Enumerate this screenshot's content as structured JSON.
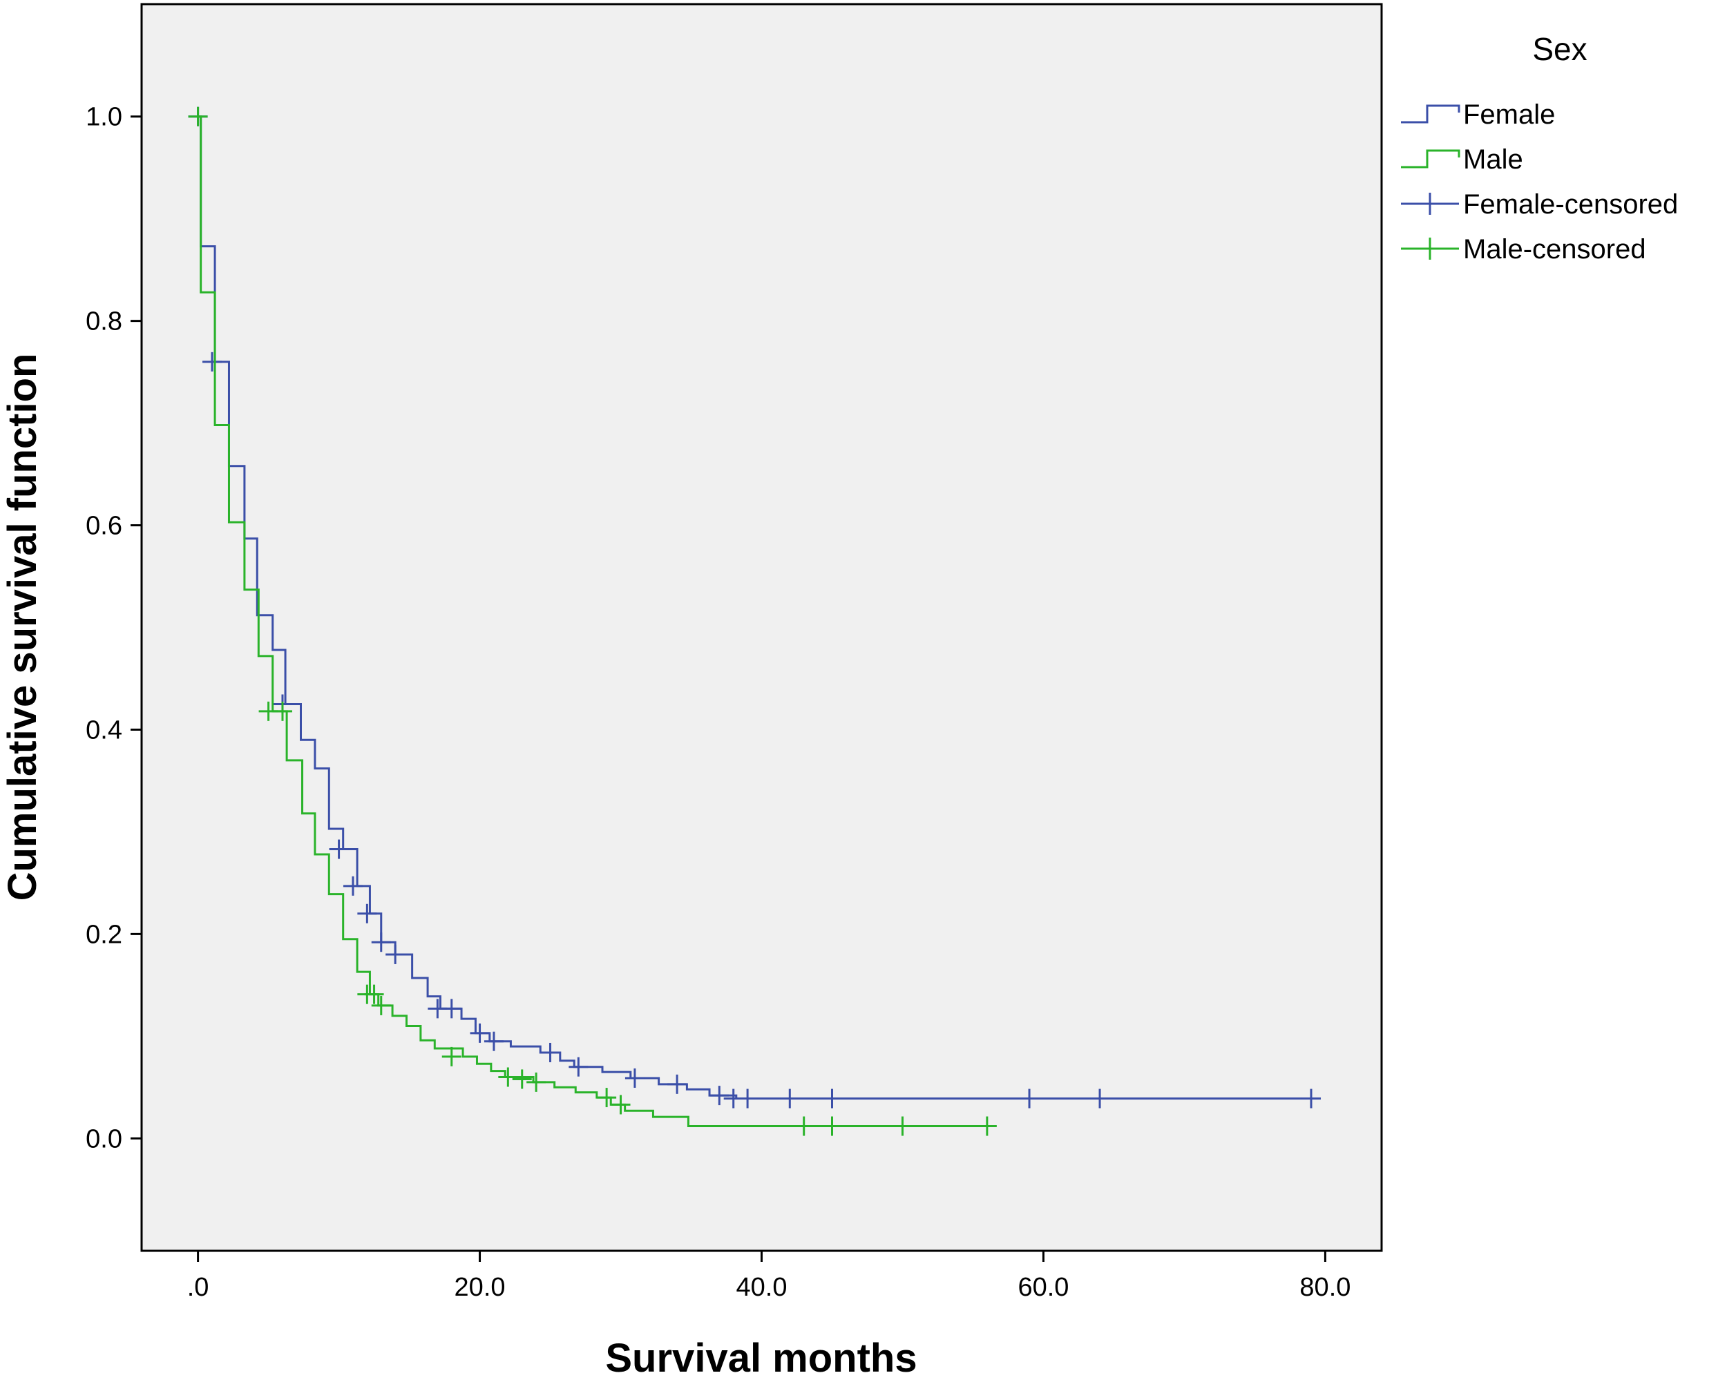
{
  "chart_data": {
    "type": "line",
    "subtype": "kaplan-meier",
    "title": "",
    "xlabel": "Survival months",
    "ylabel": "Cumulative survival function",
    "xlim": [
      -4,
      84
    ],
    "ylim": [
      -0.11,
      1.11
    ],
    "x_ticks": [
      0,
      20,
      40,
      60,
      80
    ],
    "x_tick_labels": [
      ".0",
      "20.0",
      "40.0",
      "60.0",
      "80.0"
    ],
    "y_ticks": [
      0,
      0.2,
      0.4,
      0.6,
      0.8,
      1.0
    ],
    "y_tick_labels": [
      "0.0",
      "0.2",
      "0.4",
      "0.6",
      "0.8",
      "1.0"
    ],
    "grid": false,
    "legend": {
      "title": "Sex",
      "position": "right",
      "entries": [
        {
          "label": "Female",
          "kind": "step",
          "series": "Female"
        },
        {
          "label": "Male",
          "kind": "step",
          "series": "Male"
        },
        {
          "label": "Female-censored",
          "kind": "censor",
          "series": "Female"
        },
        {
          "label": "Male-censored",
          "kind": "censor",
          "series": "Male"
        }
      ]
    },
    "series": [
      {
        "name": "Female",
        "color": "#3b4fa8",
        "steps": [
          [
            0,
            1.0
          ],
          [
            0.2,
            0.873
          ],
          [
            1.2,
            0.76
          ],
          [
            2.2,
            0.658
          ],
          [
            3.3,
            0.587
          ],
          [
            4.2,
            0.512
          ],
          [
            5.3,
            0.478
          ],
          [
            6.2,
            0.425
          ],
          [
            7.3,
            0.39
          ],
          [
            8.3,
            0.362
          ],
          [
            9.3,
            0.303
          ],
          [
            10.3,
            0.283
          ],
          [
            11.3,
            0.247
          ],
          [
            12.2,
            0.22
          ],
          [
            13.0,
            0.192
          ],
          [
            14.0,
            0.18
          ],
          [
            15.2,
            0.157
          ],
          [
            16.3,
            0.139
          ],
          [
            17.2,
            0.127
          ],
          [
            18.7,
            0.117
          ],
          [
            19.7,
            0.103
          ],
          [
            20.7,
            0.095
          ],
          [
            22.2,
            0.09
          ],
          [
            24.3,
            0.084
          ],
          [
            25.7,
            0.076
          ],
          [
            26.7,
            0.07
          ],
          [
            28.7,
            0.065
          ],
          [
            30.7,
            0.059
          ],
          [
            32.7,
            0.053
          ],
          [
            34.7,
            0.048
          ],
          [
            36.3,
            0.042
          ],
          [
            38.2,
            0.039
          ],
          [
            79.0,
            0.039
          ]
        ],
        "censored": [
          [
            0,
            1.0
          ],
          [
            1.0,
            0.76
          ],
          [
            6.0,
            0.425
          ],
          [
            10.0,
            0.283
          ],
          [
            11.0,
            0.247
          ],
          [
            12.0,
            0.22
          ],
          [
            13.0,
            0.192
          ],
          [
            14.0,
            0.18
          ],
          [
            17.0,
            0.127
          ],
          [
            18.0,
            0.127
          ],
          [
            20.0,
            0.103
          ],
          [
            21.0,
            0.095
          ],
          [
            25.0,
            0.084
          ],
          [
            27.0,
            0.07
          ],
          [
            31.0,
            0.059
          ],
          [
            34.0,
            0.053
          ],
          [
            37.0,
            0.042
          ],
          [
            38.0,
            0.039
          ],
          [
            39.0,
            0.039
          ],
          [
            42.0,
            0.039
          ],
          [
            45.0,
            0.039
          ],
          [
            59.0,
            0.039
          ],
          [
            64.0,
            0.039
          ],
          [
            79.0,
            0.039
          ]
        ]
      },
      {
        "name": "Male",
        "color": "#2ab32a",
        "steps": [
          [
            0,
            1.0
          ],
          [
            0.2,
            0.828
          ],
          [
            1.2,
            0.698
          ],
          [
            2.2,
            0.603
          ],
          [
            3.3,
            0.537
          ],
          [
            4.3,
            0.472
          ],
          [
            5.3,
            0.418
          ],
          [
            6.3,
            0.37
          ],
          [
            7.4,
            0.318
          ],
          [
            8.3,
            0.278
          ],
          [
            9.3,
            0.239
          ],
          [
            10.3,
            0.195
          ],
          [
            11.3,
            0.163
          ],
          [
            12.2,
            0.141
          ],
          [
            12.8,
            0.13
          ],
          [
            13.8,
            0.12
          ],
          [
            14.8,
            0.11
          ],
          [
            15.8,
            0.096
          ],
          [
            16.8,
            0.088
          ],
          [
            18.8,
            0.08
          ],
          [
            19.8,
            0.073
          ],
          [
            20.8,
            0.066
          ],
          [
            21.8,
            0.06
          ],
          [
            23.8,
            0.055
          ],
          [
            25.3,
            0.05
          ],
          [
            26.8,
            0.045
          ],
          [
            28.3,
            0.04
          ],
          [
            29.3,
            0.033
          ],
          [
            30.3,
            0.027
          ],
          [
            32.3,
            0.021
          ],
          [
            34.8,
            0.012
          ],
          [
            56.0,
            0.012
          ]
        ],
        "censored": [
          [
            0,
            1.0
          ],
          [
            5.0,
            0.418
          ],
          [
            6.0,
            0.418
          ],
          [
            12.0,
            0.141
          ],
          [
            12.5,
            0.141
          ],
          [
            13.0,
            0.13
          ],
          [
            18.0,
            0.08
          ],
          [
            22.0,
            0.06
          ],
          [
            23.0,
            0.058
          ],
          [
            24.0,
            0.055
          ],
          [
            29.0,
            0.04
          ],
          [
            30.0,
            0.033
          ],
          [
            43.0,
            0.012
          ],
          [
            45.0,
            0.012
          ],
          [
            50.0,
            0.012
          ],
          [
            56.0,
            0.012
          ]
        ]
      }
    ]
  }
}
